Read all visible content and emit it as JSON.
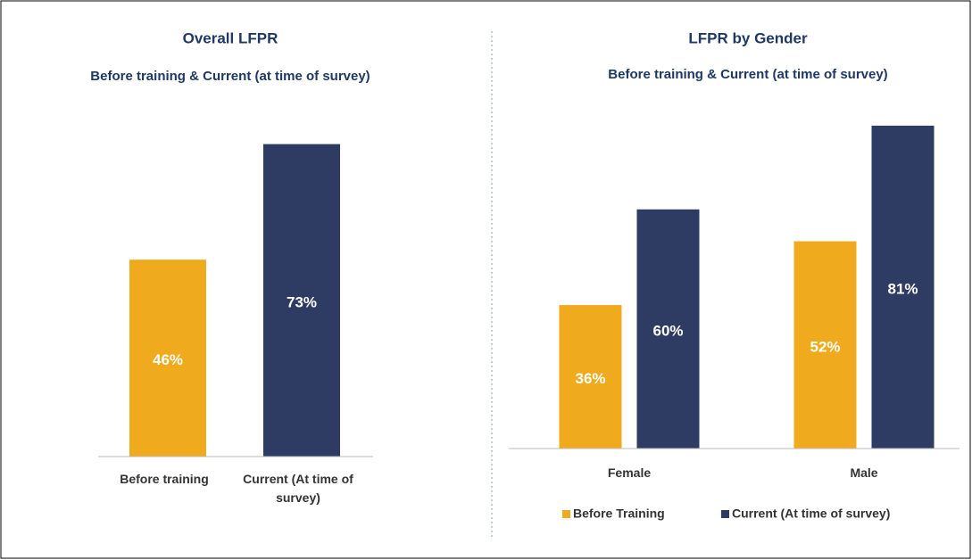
{
  "chart_data": [
    {
      "type": "bar",
      "title": "Overall LFPR",
      "subtitle": "Before training & Current (at time of survey)",
      "categories": [
        "Before training",
        "Current (At time of survey)"
      ],
      "values": [
        46,
        73
      ],
      "value_labels": [
        "46%",
        "73%"
      ],
      "colors": [
        "#f0aa1e",
        "#2e3b63"
      ],
      "ylim": [
        0,
        100
      ]
    },
    {
      "type": "grouped_bar",
      "title": "LFPR by Gender",
      "subtitle": "Before training & Current (at time of survey)",
      "categories": [
        "Female",
        "Male"
      ],
      "series": [
        {
          "name": "Before Training",
          "color": "#f0aa1e",
          "values": [
            36,
            52
          ],
          "value_labels": [
            "36%",
            "52%"
          ]
        },
        {
          "name": "Current (At time of survey)",
          "color": "#2e3b63",
          "values": [
            60,
            81
          ],
          "value_labels": [
            "60%",
            "81%"
          ]
        }
      ],
      "ylim": [
        0,
        100
      ],
      "legend": "bottom"
    }
  ]
}
